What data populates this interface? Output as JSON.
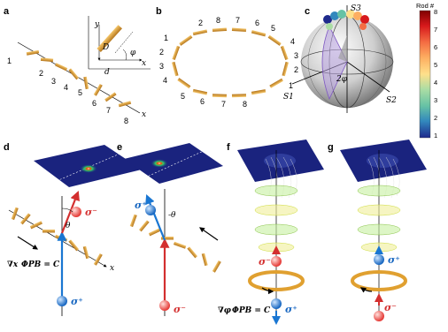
{
  "panels": {
    "a": "a",
    "b": "b",
    "c": "c",
    "d": "d",
    "e": "e",
    "f": "f",
    "g": "g"
  },
  "panel_a": {
    "rod_numbers": [
      "1",
      "2",
      "3",
      "4",
      "5",
      "6",
      "7",
      "8"
    ],
    "axis_x": "x",
    "inset": {
      "y": "y",
      "x": "x",
      "D": "D",
      "d": "d",
      "phi": "φ"
    }
  },
  "panel_b": {
    "top_numbers": [
      "2",
      "8",
      "7",
      "6",
      "5"
    ],
    "left_numbers": [
      "1",
      "2",
      "3",
      "4"
    ],
    "right_numbers": [
      "4",
      "3",
      "2",
      "1"
    ],
    "bottom_numbers": [
      "5",
      "6",
      "7",
      "8"
    ]
  },
  "panel_c": {
    "s1": "S1",
    "s2": "S2",
    "s3": "S3",
    "angle": "2φ"
  },
  "colorbar": {
    "title": "Rod #",
    "ticks": [
      "8",
      "7",
      "6",
      "5",
      "4",
      "3",
      "2",
      "1"
    ],
    "colors": [
      "#7f0000",
      "#d7191c",
      "#f46d43",
      "#fdae61",
      "#fee08b",
      "#abdda4",
      "#66c2a5",
      "#3288bd",
      "#5e4fa2",
      "#1f2a8c"
    ]
  },
  "panel_d": {
    "sigma_minus": "σ⁻",
    "sigma_plus": "σ⁺",
    "theta": "θ",
    "axis_x": "x",
    "equation_lhs": "∇x",
    "equation_rhs": "ΦPB = C"
  },
  "panel_e": {
    "sigma_plus": "σ⁺",
    "sigma_minus": "σ⁻",
    "theta": "-θ"
  },
  "panel_f": {
    "sigma_minus": "σ⁻",
    "sigma_plus": "σ⁺",
    "equation_lhs": "∇φ",
    "equation_rhs": "ΦPB = C"
  },
  "panel_g": {
    "sigma_plus": "σ⁺",
    "sigma_minus": "σ⁻"
  }
}
